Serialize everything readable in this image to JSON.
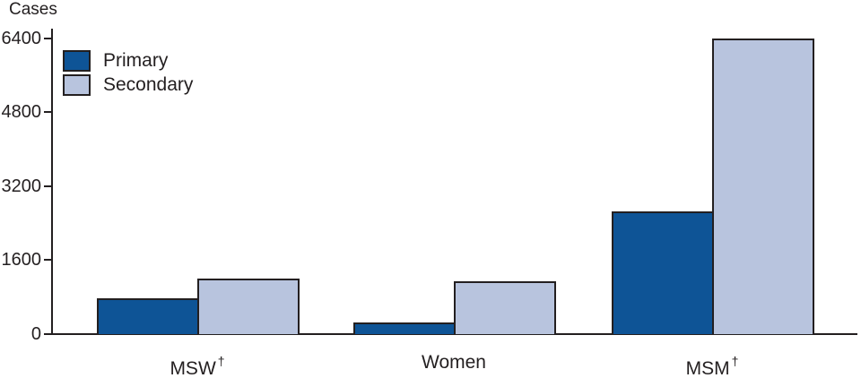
{
  "colors": {
    "primary": "#0e5496",
    "secondary": "#b8c4de",
    "axis": "#231f20",
    "text": "#231f20",
    "background": "#ffffff"
  },
  "chart_data": {
    "type": "bar",
    "title": "",
    "ylabel": "Cases",
    "xlabel": "",
    "ylim": [
      0,
      6400
    ],
    "yticks": [
      0,
      1600,
      3200,
      4800,
      6400
    ],
    "grid": false,
    "legend_position": "top-left",
    "categories": [
      "MSW†",
      "Women",
      "MSM†"
    ],
    "category_labels": [
      {
        "text": "MSW",
        "sup": "†"
      },
      {
        "text": "Women",
        "sup": ""
      },
      {
        "text": "MSM",
        "sup": "†"
      }
    ],
    "series": [
      {
        "name": "Primary",
        "color": "#0e5496",
        "values": [
          780,
          260,
          2660
        ]
      },
      {
        "name": "Secondary",
        "color": "#b8c4de",
        "values": [
          1200,
          1150,
          6400
        ]
      }
    ]
  }
}
